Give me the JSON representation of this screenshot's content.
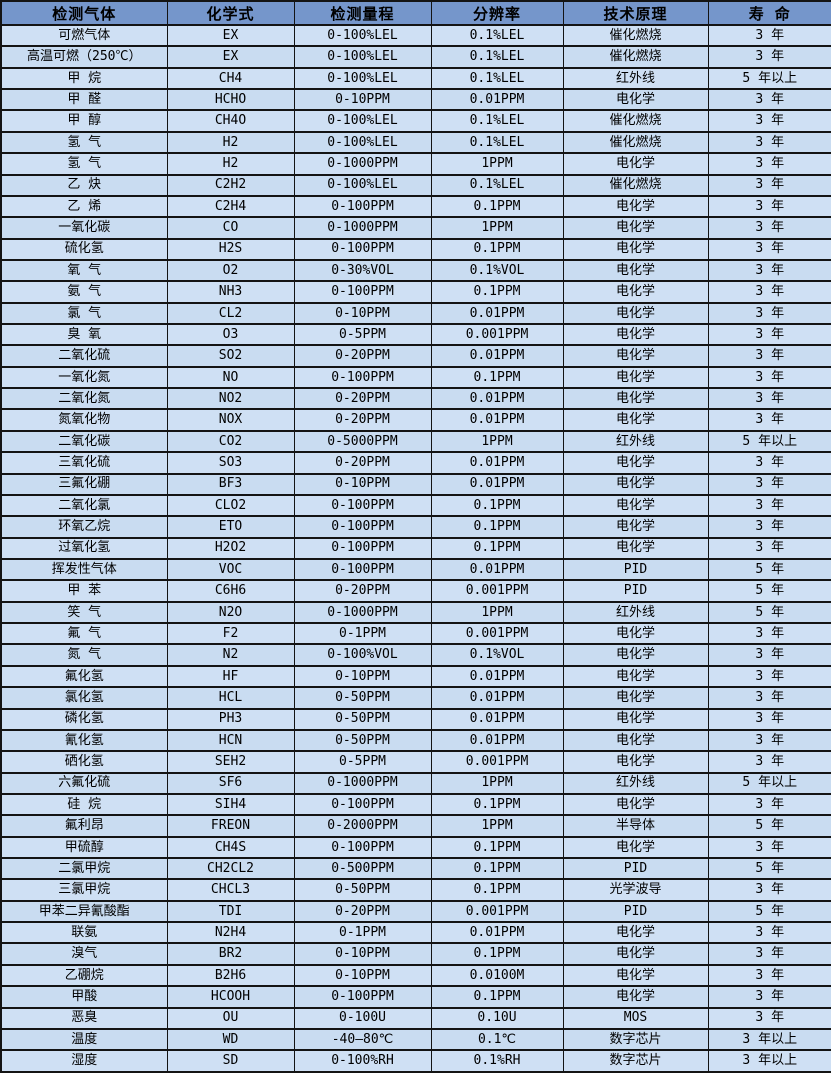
{
  "colors": {
    "header_bg": "#7596CB",
    "row_bg": "#C9DCF1",
    "row_bg_alt": "#CFE0F4",
    "border": "#141414",
    "text": "#000000"
  },
  "chart_data": {
    "type": "table",
    "title": "",
    "columns": [
      "检测气体",
      "化学式",
      "检测量程",
      "分辨率",
      "技术原理",
      "寿 命"
    ],
    "rows": [
      [
        "可燃气体",
        "EX",
        "0-100%LEL",
        "0.1%LEL",
        "催化燃烧",
        "3 年"
      ],
      [
        "高温可燃（250℃）",
        "EX",
        "0-100%LEL",
        "0.1%LEL",
        "催化燃烧",
        "3 年"
      ],
      [
        "甲 烷",
        "CH4",
        "0-100%LEL",
        "0.1%LEL",
        "红外线",
        "5 年以上"
      ],
      [
        "甲 醛",
        "HCHO",
        "0-10PPM",
        "0.01PPM",
        "电化学",
        "3 年"
      ],
      [
        "甲 醇",
        "CH4O",
        "0-100%LEL",
        "0.1%LEL",
        "催化燃烧",
        "3 年"
      ],
      [
        "氢 气",
        "H2",
        "0-100%LEL",
        "0.1%LEL",
        "催化燃烧",
        "3 年"
      ],
      [
        "氢 气",
        "H2",
        "0-1000PPM",
        "1PPM",
        "电化学",
        "3 年"
      ],
      [
        "乙 炔",
        "C2H2",
        "0-100%LEL",
        "0.1%LEL",
        "催化燃烧",
        "3 年"
      ],
      [
        "乙 烯",
        "C2H4",
        "0-100PPM",
        "0.1PPM",
        "电化学",
        "3 年"
      ],
      [
        "一氧化碳",
        "CO",
        "0-1000PPM",
        "1PPM",
        "电化学",
        "3 年"
      ],
      [
        "硫化氢",
        "H2S",
        "0-100PPM",
        "0.1PPM",
        "电化学",
        "3 年"
      ],
      [
        "氧 气",
        "O2",
        "0-30%VOL",
        "0.1%VOL",
        "电化学",
        "3 年"
      ],
      [
        "氨 气",
        "NH3",
        "0-100PPM",
        "0.1PPM",
        "电化学",
        "3 年"
      ],
      [
        "氯 气",
        "CL2",
        "0-10PPM",
        "0.01PPM",
        "电化学",
        "3 年"
      ],
      [
        "臭 氧",
        "O3",
        "0-5PPM",
        "0.001PPM",
        "电化学",
        "3 年"
      ],
      [
        "二氧化硫",
        "SO2",
        "0-20PPM",
        "0.01PPM",
        "电化学",
        "3 年"
      ],
      [
        "一氧化氮",
        "NO",
        "0-100PPM",
        "0.1PPM",
        "电化学",
        "3 年"
      ],
      [
        "二氧化氮",
        "NO2",
        "0-20PPM",
        "0.01PPM",
        "电化学",
        "3 年"
      ],
      [
        "氮氧化物",
        "NOX",
        "0-20PPM",
        "0.01PPM",
        "电化学",
        "3 年"
      ],
      [
        "二氧化碳",
        "CO2",
        "0-5000PPM",
        "1PPM",
        "红外线",
        "5 年以上"
      ],
      [
        "三氧化硫",
        "SO3",
        "0-20PPM",
        "0.01PPM",
        "电化学",
        "3 年"
      ],
      [
        "三氟化硼",
        "BF3",
        "0-10PPM",
        "0.01PPM",
        "电化学",
        "3 年"
      ],
      [
        "二氧化氯",
        "CLO2",
        "0-100PPM",
        "0.1PPM",
        "电化学",
        "3 年"
      ],
      [
        "环氧乙烷",
        "ETO",
        "0-100PPM",
        "0.1PPM",
        "电化学",
        "3 年"
      ],
      [
        "过氧化氢",
        "H2O2",
        "0-100PPM",
        "0.1PPM",
        "电化学",
        "3 年"
      ],
      [
        "挥发性气体",
        "VOC",
        "0-100PPM",
        "0.01PPM",
        "PID",
        "5 年"
      ],
      [
        "甲 苯",
        "C6H6",
        "0-20PPM",
        "0.001PPM",
        "PID",
        "5 年"
      ],
      [
        "笑 气",
        "N2O",
        "0-1000PPM",
        "1PPM",
        "红外线",
        "5 年"
      ],
      [
        "氟 气",
        "F2",
        "0-1PPM",
        "0.001PPM",
        "电化学",
        "3 年"
      ],
      [
        "氮 气",
        "N2",
        "0-100%VOL",
        "0.1%VOL",
        "电化学",
        "3 年"
      ],
      [
        "氟化氢",
        "HF",
        "0-10PPM",
        "0.01PPM",
        "电化学",
        "3 年"
      ],
      [
        "氯化氢",
        "HCL",
        "0-50PPM",
        "0.01PPM",
        "电化学",
        "3 年"
      ],
      [
        "磷化氢",
        "PH3",
        "0-50PPM",
        "0.01PPM",
        "电化学",
        "3 年"
      ],
      [
        "氰化氢",
        "HCN",
        "0-50PPM",
        "0.01PPM",
        "电化学",
        "3 年"
      ],
      [
        "硒化氢",
        "SEH2",
        "0-5PPM",
        "0.001PPM",
        "电化学",
        "3 年"
      ],
      [
        "六氟化硫",
        "SF6",
        "0-1000PPM",
        "1PPM",
        "红外线",
        "5 年以上"
      ],
      [
        "硅 烷",
        "SIH4",
        "0-100PPM",
        "0.1PPM",
        "电化学",
        "3 年"
      ],
      [
        "氟利昂",
        "FREON",
        "0-2000PPM",
        "1PPM",
        "半导体",
        "5 年"
      ],
      [
        "甲硫醇",
        "CH4S",
        "0-100PPM",
        "0.1PPM",
        "电化学",
        "3 年"
      ],
      [
        "二氯甲烷",
        "CH2CL2",
        "0-500PPM",
        "0.1PPM",
        "PID",
        "5 年"
      ],
      [
        "三氯甲烷",
        "CHCL3",
        "0-50PPM",
        "0.1PPM",
        "光学波导",
        "3 年"
      ],
      [
        "甲苯二异氰酸酯",
        "TDI",
        "0-20PPM",
        "0.001PPM",
        "PID",
        "5 年"
      ],
      [
        "联氨",
        "N2H4",
        "0-1PPM",
        "0.01PPM",
        "电化学",
        "3 年"
      ],
      [
        "溴气",
        "BR2",
        "0-10PPM",
        "0.1PPM",
        "电化学",
        "3 年"
      ],
      [
        "乙硼烷",
        "B2H6",
        "0-10PPM",
        "0.0100M",
        "电化学",
        "3 年"
      ],
      [
        "甲酸",
        "HCOOH",
        "0-100PPM",
        "0.1PPM",
        "电化学",
        "3 年"
      ],
      [
        "恶臭",
        "OU",
        "0-100U",
        "0.10U",
        "MOS",
        "3 年"
      ],
      [
        "温度",
        "WD",
        "-40—80℃",
        "0.1℃",
        "数字芯片",
        "3 年以上"
      ],
      [
        "湿度",
        "SD",
        "0-100%RH",
        "0.1%RH",
        "数字芯片",
        "3 年以上"
      ]
    ]
  }
}
